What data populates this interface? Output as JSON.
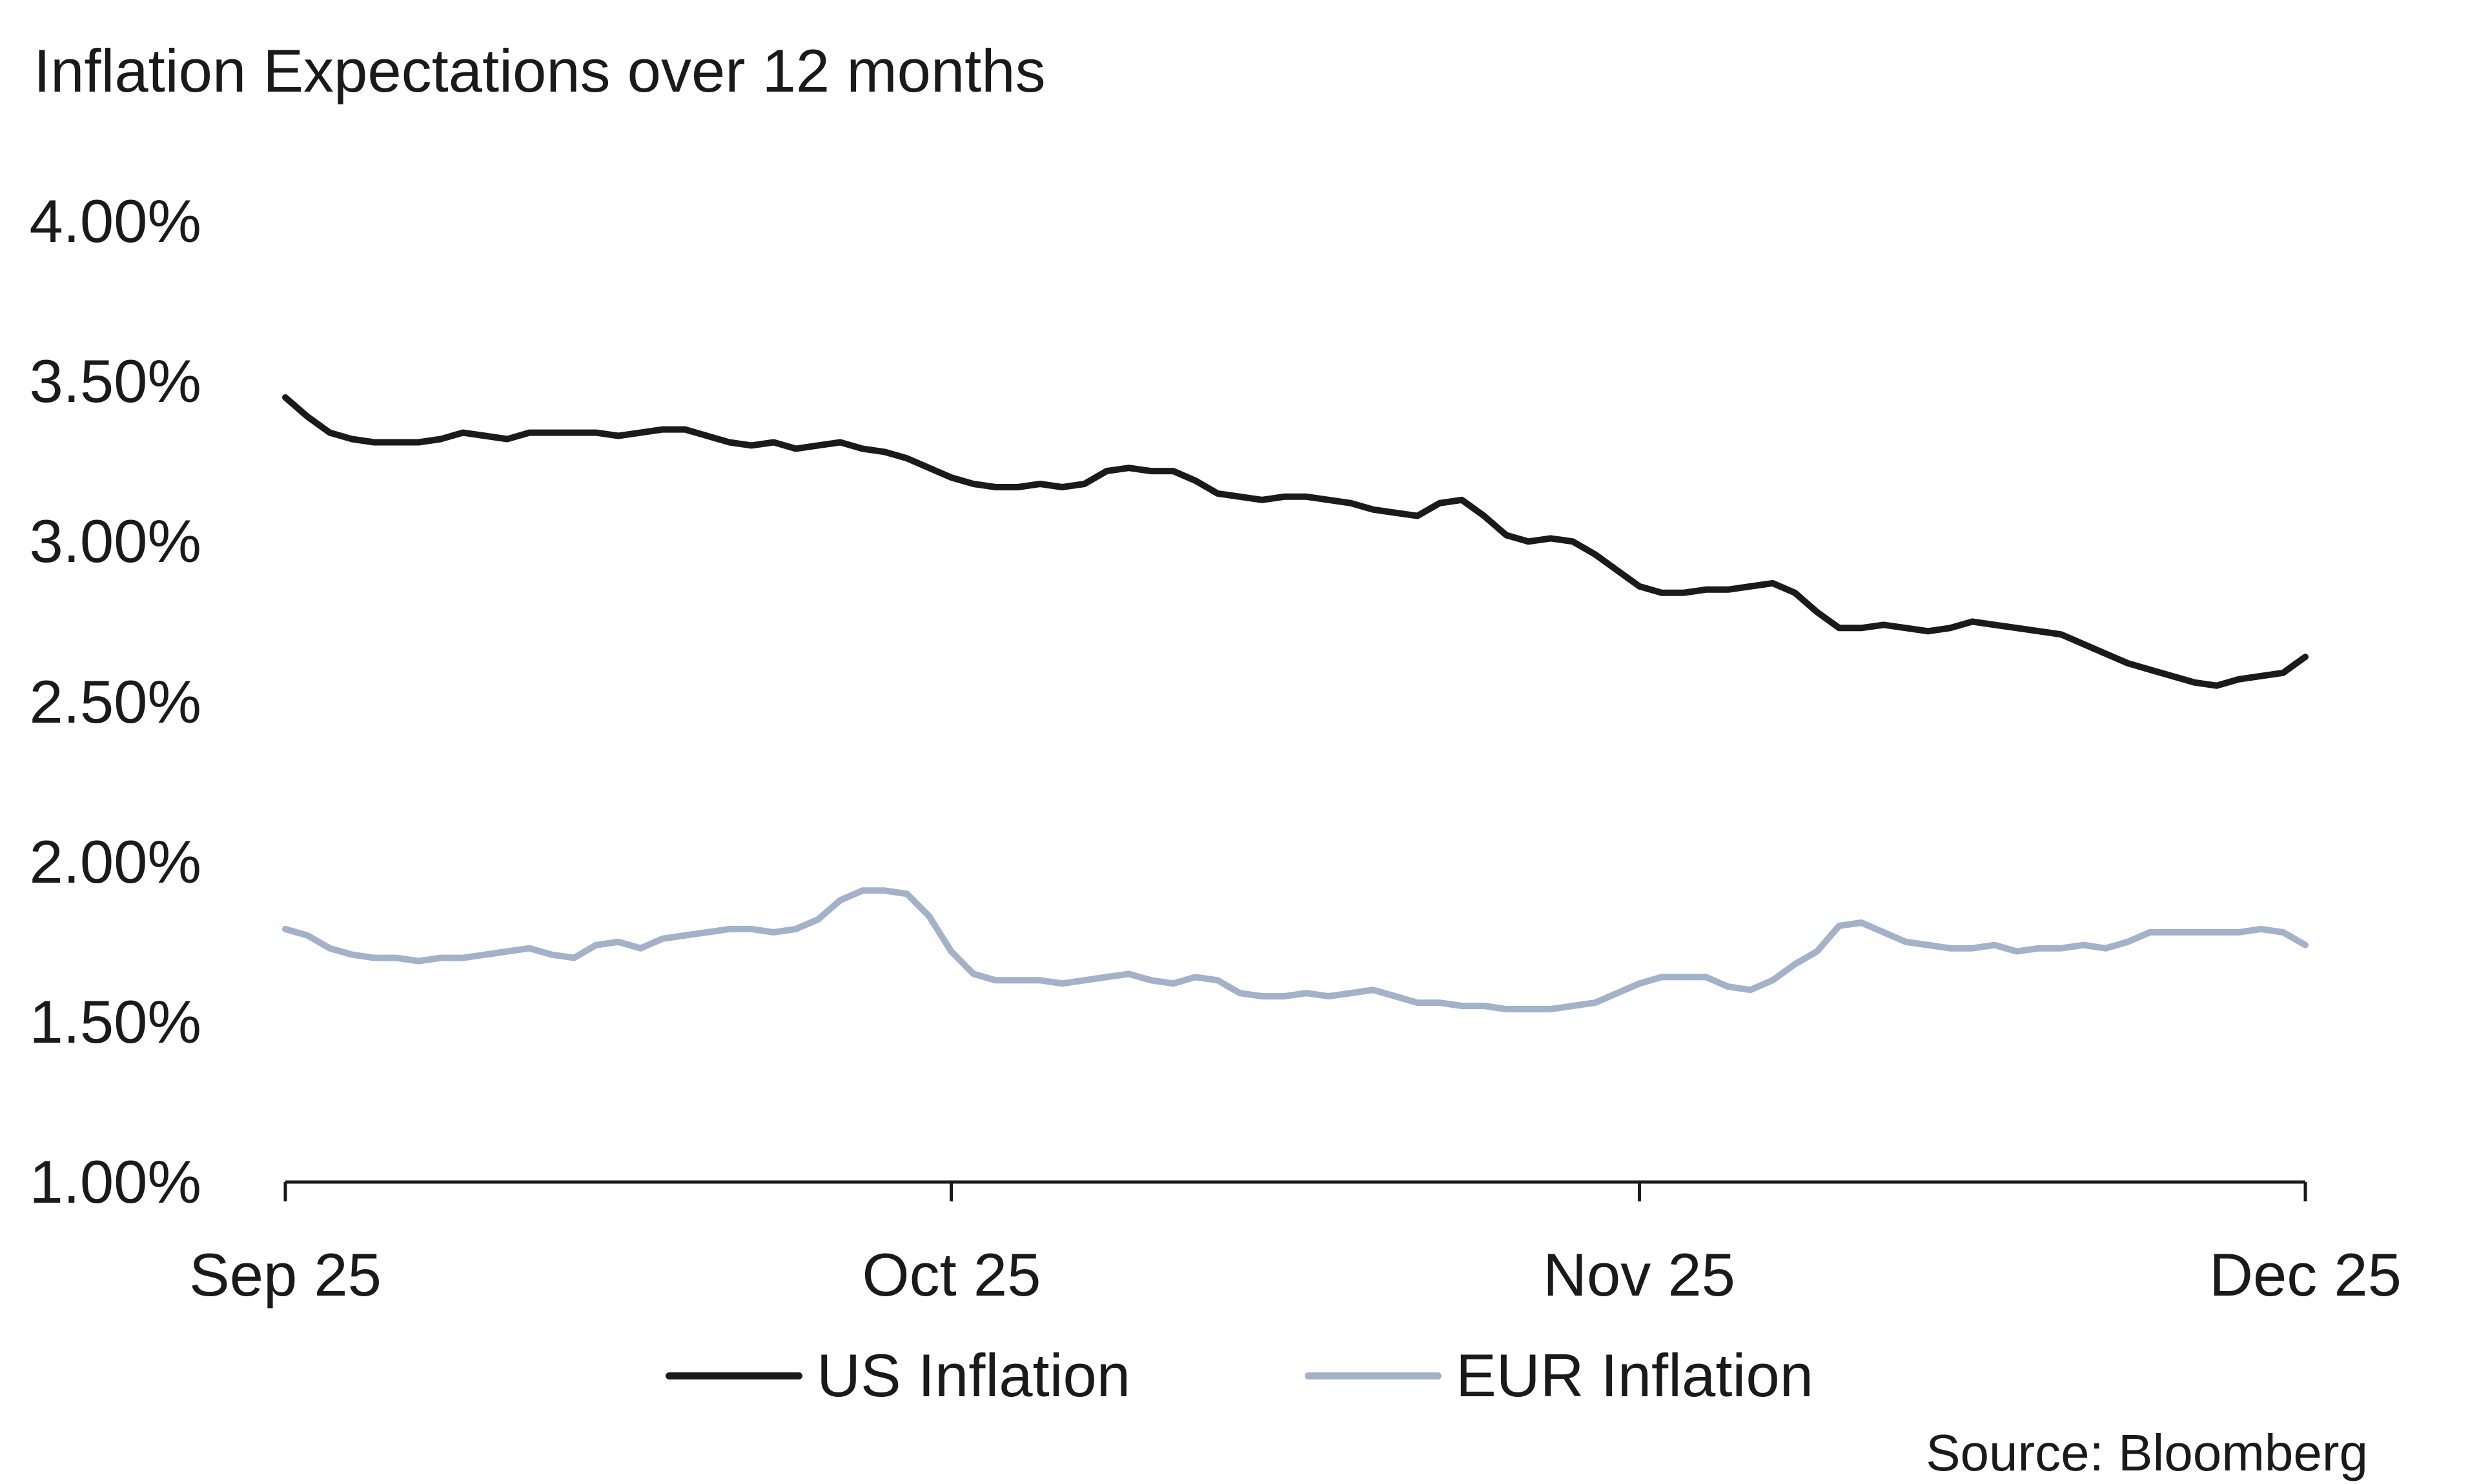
{
  "title": "Inflation Expectations over 12 months",
  "source": "Source: Bloomberg",
  "colors": {
    "axis": "#1a1a1a",
    "text": "#1a1a1a",
    "us": "#1a1a1a",
    "eur": "#a3b1c9"
  },
  "chart_data": {
    "type": "line",
    "title": "Inflation Expectations over 12 months",
    "source": "Source: Bloomberg",
    "grid": false,
    "legend_position": "bottom",
    "unit": "%",
    "ylim": [
      1.0,
      4.0
    ],
    "y_ticks": [
      4.0,
      3.5,
      3.0,
      2.5,
      2.0,
      1.5,
      1.0
    ],
    "y_tick_labels": [
      "4.00%",
      "3.50%",
      "3.00%",
      "2.50%",
      "2.00%",
      "1.50%",
      "1.00%"
    ],
    "x_tick_labels": [
      "Sep 25",
      "Oct 25",
      "Nov 25",
      "Dec 25"
    ],
    "x_tick_indices": [
      0,
      30,
      61,
      91
    ],
    "series": [
      {
        "name": "US Inflation",
        "color": "#1a1a1a",
        "values": [
          3.45,
          3.39,
          3.34,
          3.32,
          3.31,
          3.31,
          3.31,
          3.32,
          3.34,
          3.33,
          3.32,
          3.34,
          3.34,
          3.34,
          3.34,
          3.33,
          3.34,
          3.35,
          3.35,
          3.33,
          3.31,
          3.3,
          3.31,
          3.29,
          3.3,
          3.31,
          3.29,
          3.28,
          3.26,
          3.23,
          3.2,
          3.18,
          3.17,
          3.17,
          3.18,
          3.17,
          3.18,
          3.22,
          3.23,
          3.22,
          3.22,
          3.19,
          3.15,
          3.14,
          3.13,
          3.14,
          3.14,
          3.13,
          3.12,
          3.1,
          3.09,
          3.08,
          3.12,
          3.13,
          3.08,
          3.02,
          3.0,
          3.01,
          3.0,
          2.96,
          2.91,
          2.86,
          2.84,
          2.84,
          2.85,
          2.85,
          2.86,
          2.87,
          2.84,
          2.78,
          2.73,
          2.73,
          2.74,
          2.73,
          2.72,
          2.73,
          2.75,
          2.74,
          2.73,
          2.72,
          2.71,
          2.68,
          2.65,
          2.62,
          2.6,
          2.58,
          2.56,
          2.55,
          2.57,
          2.58,
          2.59,
          2.64
        ]
      },
      {
        "name": "EUR Inflation",
        "color": "#a3b1c9",
        "values": [
          1.79,
          1.77,
          1.73,
          1.71,
          1.7,
          1.7,
          1.69,
          1.7,
          1.7,
          1.71,
          1.72,
          1.73,
          1.71,
          1.7,
          1.74,
          1.75,
          1.73,
          1.76,
          1.77,
          1.78,
          1.79,
          1.79,
          1.78,
          1.79,
          1.82,
          1.88,
          1.91,
          1.91,
          1.9,
          1.83,
          1.72,
          1.65,
          1.63,
          1.63,
          1.63,
          1.62,
          1.63,
          1.64,
          1.65,
          1.63,
          1.62,
          1.64,
          1.63,
          1.59,
          1.58,
          1.58,
          1.59,
          1.58,
          1.59,
          1.6,
          1.58,
          1.56,
          1.56,
          1.55,
          1.55,
          1.54,
          1.54,
          1.54,
          1.55,
          1.56,
          1.59,
          1.62,
          1.64,
          1.64,
          1.64,
          1.61,
          1.6,
          1.63,
          1.68,
          1.72,
          1.8,
          1.81,
          1.78,
          1.75,
          1.74,
          1.73,
          1.73,
          1.74,
          1.72,
          1.73,
          1.73,
          1.74,
          1.73,
          1.75,
          1.78,
          1.78,
          1.78,
          1.78,
          1.78,
          1.79,
          1.78,
          1.74
        ]
      }
    ]
  }
}
